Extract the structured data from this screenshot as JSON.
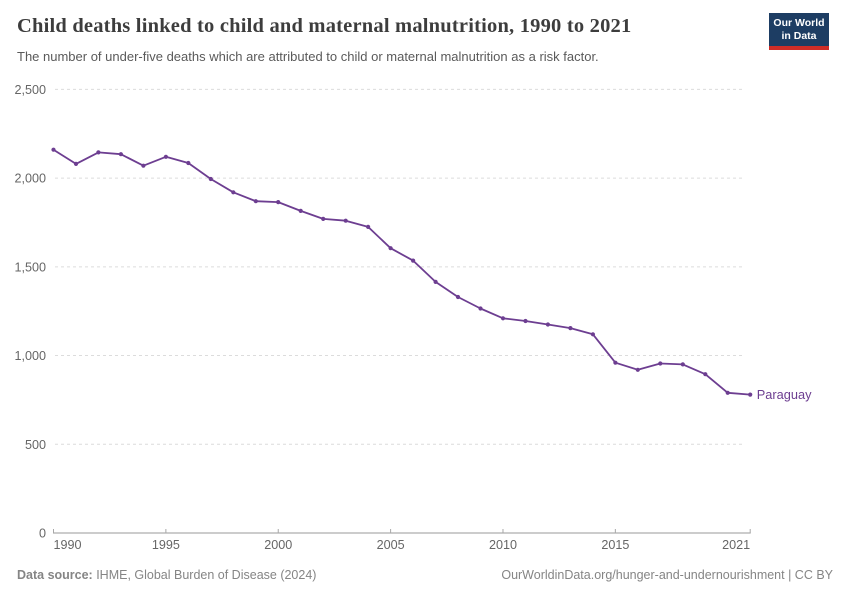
{
  "chart_data": {
    "type": "line",
    "title": "Child deaths linked to child and maternal malnutrition, 1990 to 2021",
    "subtitle": "The number of under-five deaths which are attributed to child or maternal malnutrition as a risk factor.",
    "x": [
      1990,
      1991,
      1992,
      1993,
      1994,
      1995,
      1996,
      1997,
      1998,
      1999,
      2000,
      2001,
      2002,
      2003,
      2004,
      2005,
      2006,
      2007,
      2008,
      2009,
      2010,
      2011,
      2012,
      2013,
      2014,
      2015,
      2016,
      2017,
      2018,
      2019,
      2020,
      2021
    ],
    "series": [
      {
        "name": "Paraguay",
        "color": "#6d3e91",
        "values": [
          2160,
          2080,
          2145,
          2135,
          2070,
          2120,
          2085,
          1995,
          1920,
          1870,
          1865,
          1815,
          1770,
          1760,
          1725,
          1605,
          1535,
          1415,
          1330,
          1265,
          1210,
          1195,
          1175,
          1155,
          1120,
          960,
          920,
          955,
          950,
          895,
          790,
          780
        ]
      }
    ],
    "end_label": "Paraguay",
    "xlabel": "",
    "ylabel": "",
    "ylim": [
      0,
      2500
    ],
    "yticks": [
      0,
      500,
      1000,
      1500,
      2000,
      2500
    ],
    "ytick_labels": [
      "0",
      "500",
      "1,000",
      "1,500",
      "2,000",
      "2,500"
    ],
    "xticks": [
      1990,
      1995,
      2000,
      2005,
      2010,
      2015,
      2021
    ],
    "xtick_labels": [
      "1990",
      "1995",
      "2000",
      "2005",
      "2010",
      "2015",
      "2021"
    ],
    "grid": "horizontal-dashed",
    "legend": "end-of-line-label",
    "colors": {
      "line": "#6d3e91",
      "gridline": "#dcdcdc",
      "axis": "#999999",
      "tick": "#a8a8a8",
      "tick_label": "#666666"
    }
  },
  "logo": {
    "line1": "Our World",
    "line2": "in Data",
    "bg_color": "#1d3d63",
    "stripe_color": "#cf2d27"
  },
  "footer": {
    "source_label": "Data source:",
    "source_text": " IHME, Global Burden of Disease (2024)",
    "link_text": "OurWorldinData.org/hunger-and-undernourishment | CC BY"
  }
}
